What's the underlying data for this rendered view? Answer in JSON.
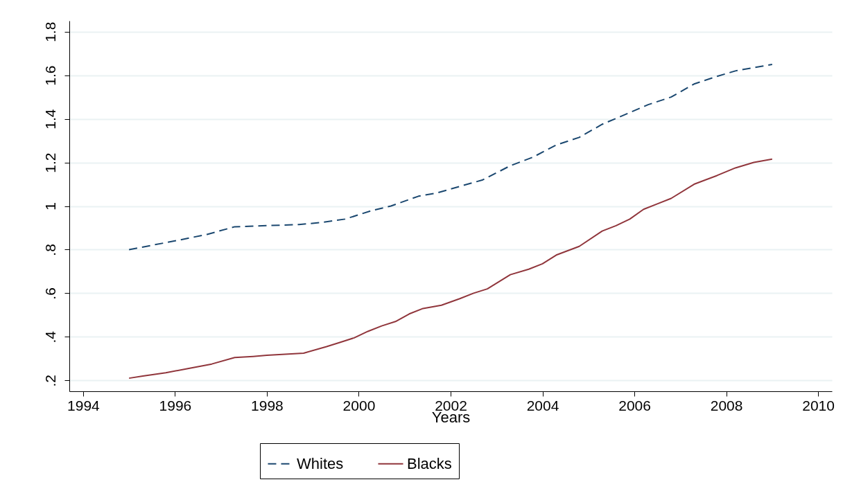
{
  "chart_data": {
    "type": "line",
    "xlabel": "Years",
    "x": [
      1995,
      1995.5,
      1996,
      1996.7,
      1997.3,
      1998,
      1998.7,
      1999.2,
      1999.7,
      2000,
      2000.3,
      2000.7,
      2001.3,
      2001.7,
      2002.7,
      2003.3,
      2003.8,
      2004.3,
      2004.8,
      2005.3,
      2005.8,
      2006.3,
      2006.8,
      2007.3,
      2007.8,
      2008.2,
      2008.6,
      2009
    ],
    "series": [
      {
        "name": "Whites",
        "color": "#1a476f",
        "line_style": "dashed",
        "values": [
          0.8,
          0.82,
          0.84,
          0.87,
          0.905,
          0.91,
          0.915,
          0.925,
          0.94,
          0.96,
          0.98,
          1.0,
          1.045,
          1.06,
          1.12,
          1.185,
          1.225,
          1.28,
          1.315,
          1.375,
          1.42,
          1.465,
          1.5,
          1.56,
          1.595,
          1.62,
          1.635,
          1.65
        ]
      },
      {
        "name": "Blacks",
        "color": "#90353b",
        "line_style": "solid",
        "x": [
          1995,
          1995.3,
          1995.8,
          1996.3,
          1996.8,
          1997.3,
          1997.7,
          1998,
          1998.8,
          1999.3,
          1999.6,
          1999.9,
          2000.2,
          2000.5,
          2000.8,
          2001.1,
          2001.4,
          2001.8,
          2002.2,
          2002.5,
          2002.8,
          2003.3,
          2003.7,
          2004,
          2004.3,
          2004.8,
          2005.3,
          2005.6,
          2005.9,
          2006.2,
          2006.5,
          2006.8,
          2007.3,
          2007.8,
          2008.2,
          2008.6,
          2009
        ],
        "values": [
          0.21,
          0.22,
          0.235,
          0.255,
          0.275,
          0.305,
          0.31,
          0.315,
          0.325,
          0.355,
          0.375,
          0.395,
          0.425,
          0.45,
          0.47,
          0.505,
          0.53,
          0.545,
          0.575,
          0.6,
          0.62,
          0.685,
          0.71,
          0.735,
          0.775,
          0.815,
          0.885,
          0.91,
          0.94,
          0.985,
          1.01,
          1.035,
          1.1,
          1.14,
          1.175,
          1.2,
          1.215
        ]
      }
    ],
    "xlim": [
      1993.7,
      2010.3
    ],
    "xticks": [
      1994,
      1996,
      1998,
      2000,
      2002,
      2004,
      2006,
      2008,
      2010
    ],
    "ylim": [
      0.15,
      1.85
    ],
    "yticks": [
      {
        "value": 0.2,
        "label": ".2"
      },
      {
        "value": 0.4,
        "label": ".4"
      },
      {
        "value": 0.6,
        "label": ".6"
      },
      {
        "value": 0.8,
        "label": ".8"
      },
      1,
      1.2,
      1.4,
      1.6,
      1.8
    ],
    "grid": "y",
    "legend": "bottom"
  }
}
